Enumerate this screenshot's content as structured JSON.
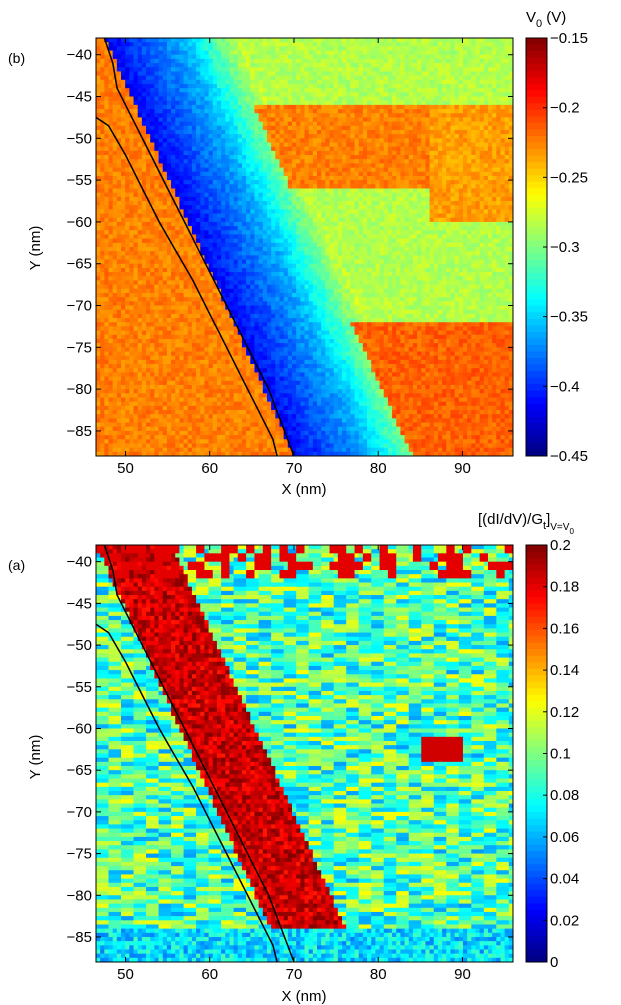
{
  "chart_data": [
    {
      "type": "heatmap",
      "panel_label": "(b)",
      "xlabel": "X (nm)",
      "ylabel": "Y (nm)",
      "xlim": [
        46.5,
        96
      ],
      "ylim": [
        -88,
        -38
      ],
      "xticks": [
        50,
        60,
        70,
        80,
        90
      ],
      "xtick_labels": [
        "50",
        "60",
        "70",
        "80",
        "90"
      ],
      "yticks": [
        -40,
        -45,
        -50,
        -55,
        -60,
        -65,
        -70,
        -75,
        -80,
        -85
      ],
      "ytick_labels": [
        "−40",
        "−45",
        "−50",
        "−55",
        "−60",
        "−65",
        "−70",
        "−75",
        "−80",
        "−85"
      ],
      "colorbar": {
        "label_main": "V",
        "label_sub": "0",
        "label_unit": " (V)",
        "range": [
          -0.45,
          -0.15
        ],
        "ticks": [
          -0.15,
          -0.2,
          -0.25,
          -0.3,
          -0.35,
          -0.4,
          -0.45
        ],
        "tick_labels": [
          "−0.15",
          "−0.2",
          "−0.25",
          "−0.3",
          "−0.35",
          "−0.4",
          "−0.45"
        ],
        "colormap": "jet"
      },
      "description_of_field": "Low V0 (about -0.42 V, blue) along a diagonal band following the boundary lines from (48,-40) to (70,-86); high V0 (about -0.20 V, orange-red) left of the boundary and in the upper/lower right; intermediate (about -0.28 V, green/cyan) elsewhere.",
      "boundary_lines": [
        {
          "points": [
            [
              47.5,
              -38
            ],
            [
              48.5,
              -41
            ],
            [
              49,
              -44
            ],
            [
              51,
              -48
            ],
            [
              53,
              -52
            ],
            [
              55,
              -56
            ],
            [
              57,
              -60
            ],
            [
              59,
              -64
            ],
            [
              61,
              -68
            ],
            [
              63,
              -72
            ],
            [
              65,
              -76
            ],
            [
              67,
              -80
            ],
            [
              68.5,
              -84
            ],
            [
              70,
              -88
            ]
          ]
        },
        {
          "points": [
            [
              46.5,
              -47.5
            ],
            [
              48,
              -48.5
            ],
            [
              50,
              -52
            ],
            [
              52,
              -56
            ],
            [
              54,
              -60
            ],
            [
              56,
              -63.5
            ],
            [
              58,
              -67
            ],
            [
              60,
              -71
            ],
            [
              62,
              -75
            ],
            [
              64,
              -79
            ],
            [
              66,
              -83
            ],
            [
              67.5,
              -86
            ],
            [
              68,
              -88
            ]
          ]
        }
      ]
    },
    {
      "type": "heatmap",
      "panel_label": "(a)",
      "xlabel": "X (nm)",
      "ylabel": "Y (nm)",
      "xlim": [
        46.5,
        96
      ],
      "ylim": [
        -88,
        -38
      ],
      "xticks": [
        50,
        60,
        70,
        80,
        90
      ],
      "xtick_labels": [
        "50",
        "60",
        "70",
        "80",
        "90"
      ],
      "yticks": [
        -40,
        -45,
        -50,
        -55,
        -60,
        -65,
        -70,
        -75,
        -80,
        -85
      ],
      "ytick_labels": [
        "−40",
        "−45",
        "−50",
        "−55",
        "−60",
        "−65",
        "−70",
        "−75",
        "−80",
        "−85"
      ],
      "colorbar": {
        "label_main": "[(dI/dV)/G",
        "label_sub": "t",
        "label_tail": "]",
        "label_sub2": "V=V",
        "label_sub3": "0",
        "range": [
          0,
          0.2
        ],
        "ticks": [
          0.2,
          0.18,
          0.16,
          0.14,
          0.12,
          0.1,
          0.08,
          0.06,
          0.04,
          0.02,
          0
        ],
        "tick_labels": [
          "0.2",
          "0.18",
          "0.16",
          "0.14",
          "0.12",
          "0.1",
          "0.08",
          "0.06",
          "0.04",
          "0.02",
          "0"
        ],
        "colormap": "jet"
      },
      "description_of_field": "High normalized conductance (about 0.19, dark red) along the diagonal band beside the boundary lines and in patches near the top edge; background mostly 0.06–0.12 (cyan to yellow) with horizontal streaks; low values (blue) near the bottom edge.",
      "boundary_lines": [
        {
          "points": [
            [
              47.5,
              -38
            ],
            [
              48.5,
              -41
            ],
            [
              49,
              -44
            ],
            [
              51,
              -48
            ],
            [
              53,
              -52
            ],
            [
              55,
              -56
            ],
            [
              57,
              -60
            ],
            [
              59,
              -64
            ],
            [
              61,
              -68
            ],
            [
              63,
              -72
            ],
            [
              65,
              -76
            ],
            [
              67,
              -80
            ],
            [
              68.5,
              -84
            ],
            [
              70,
              -88
            ]
          ]
        },
        {
          "points": [
            [
              46.5,
              -47.5
            ],
            [
              48,
              -48.5
            ],
            [
              50,
              -52
            ],
            [
              52,
              -56
            ],
            [
              54,
              -60
            ],
            [
              56,
              -63.5
            ],
            [
              58,
              -67
            ],
            [
              60,
              -71
            ],
            [
              62,
              -75
            ],
            [
              64,
              -79
            ],
            [
              66,
              -83
            ],
            [
              67.5,
              -86
            ],
            [
              68,
              -88
            ]
          ]
        }
      ]
    }
  ]
}
